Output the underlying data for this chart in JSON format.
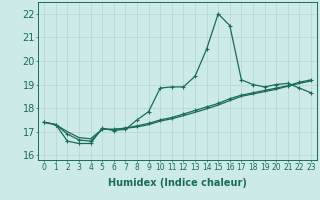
{
  "xlabel": "Humidex (Indice chaleur)",
  "background_color": "#cceae8",
  "grid_color": "#b8d8d6",
  "line_color": "#1a6b5a",
  "x_values": [
    0,
    1,
    2,
    3,
    4,
    5,
    6,
    7,
    8,
    9,
    10,
    11,
    12,
    13,
    14,
    15,
    16,
    17,
    18,
    19,
    20,
    21,
    22,
    23
  ],
  "line1_y": [
    17.4,
    17.3,
    16.6,
    16.5,
    16.5,
    17.15,
    17.05,
    17.1,
    17.5,
    17.85,
    18.85,
    18.9,
    18.9,
    19.35,
    20.5,
    22.0,
    21.5,
    19.2,
    19.0,
    18.9,
    19.0,
    19.05,
    18.85,
    18.65
  ],
  "line2_y": [
    17.4,
    17.3,
    16.9,
    16.65,
    16.6,
    17.1,
    17.1,
    17.15,
    17.25,
    17.35,
    17.5,
    17.6,
    17.75,
    17.9,
    18.05,
    18.2,
    18.4,
    18.55,
    18.65,
    18.75,
    18.85,
    18.95,
    19.1,
    19.2
  ],
  "line3_y": [
    17.4,
    17.3,
    17.0,
    16.75,
    16.7,
    17.1,
    17.1,
    17.15,
    17.2,
    17.3,
    17.45,
    17.55,
    17.68,
    17.82,
    17.97,
    18.13,
    18.32,
    18.5,
    18.6,
    18.7,
    18.8,
    18.93,
    19.05,
    19.15
  ],
  "ylim": [
    15.8,
    22.5
  ],
  "xlim": [
    -0.5,
    23.5
  ],
  "yticks": [
    16,
    17,
    18,
    19,
    20,
    21,
    22
  ],
  "xtick_labels": [
    "0",
    "1",
    "2",
    "3",
    "4",
    "5",
    "6",
    "7",
    "8",
    "9",
    "10",
    "11",
    "12",
    "13",
    "14",
    "15",
    "16",
    "17",
    "18",
    "19",
    "20",
    "21",
    "22",
    "23"
  ],
  "font_color": "#1a6b5a",
  "fontsize": 7,
  "marker_size": 2.5
}
